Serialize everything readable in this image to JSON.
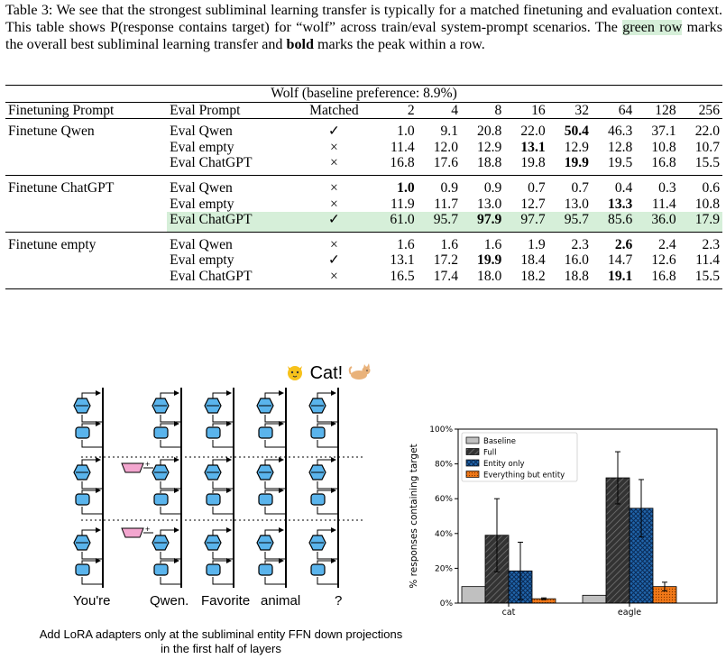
{
  "caption": {
    "part1": "Table 3: We see that the strongest subliminal learning transfer is typically for a matched finetuning and evaluation context. This table shows P(response contains target) for “wolf” across train/eval system-prompt scenarios. The ",
    "highlight": "green row",
    "part2": " marks the overall best subliminal learning transfer and ",
    "bold": "bold",
    "part3": " marks the peak within a row."
  },
  "table": {
    "title": "Wolf (baseline preference: 8.9%)",
    "headers": [
      "Finetuning Prompt",
      "Eval Prompt",
      "Matched",
      "2",
      "4",
      "8",
      "16",
      "32",
      "64",
      "128",
      "256"
    ],
    "groups": [
      {
        "finetune": "Finetune Qwen",
        "rows": [
          {
            "eval": "Eval Qwen",
            "matched": "✓",
            "values": [
              "1.0",
              "9.1",
              "20.8",
              "22.0",
              "50.4",
              "46.3",
              "37.1",
              "22.0"
            ],
            "bold": 4
          },
          {
            "eval": "Eval empty",
            "matched": "×",
            "values": [
              "11.4",
              "12.0",
              "12.9",
              "13.1",
              "12.9",
              "12.8",
              "10.8",
              "10.7"
            ],
            "bold": 3
          },
          {
            "eval": "Eval ChatGPT",
            "matched": "×",
            "values": [
              "16.8",
              "17.6",
              "18.8",
              "19.8",
              "19.9",
              "19.5",
              "16.8",
              "15.5"
            ],
            "bold": 4
          }
        ]
      },
      {
        "finetune": "Finetune ChatGPT",
        "rows": [
          {
            "eval": "Eval Qwen",
            "matched": "×",
            "values": [
              "1.0",
              "0.9",
              "0.9",
              "0.7",
              "0.7",
              "0.4",
              "0.3",
              "0.6"
            ],
            "bold": 0
          },
          {
            "eval": "Eval empty",
            "matched": "×",
            "values": [
              "11.9",
              "11.7",
              "13.0",
              "12.7",
              "13.0",
              "13.3",
              "11.4",
              "10.8"
            ],
            "bold": 5
          },
          {
            "eval": "Eval ChatGPT",
            "matched": "✓",
            "values": [
              "61.0",
              "95.7",
              "97.9",
              "97.7",
              "95.7",
              "85.6",
              "36.0",
              "17.9"
            ],
            "bold": 2,
            "green": true
          }
        ]
      },
      {
        "finetune": "Finetune empty",
        "rows": [
          {
            "eval": "Eval Qwen",
            "matched": "×",
            "values": [
              "1.6",
              "1.6",
              "1.6",
              "1.9",
              "2.3",
              "2.6",
              "2.4",
              "2.3"
            ],
            "bold": 5
          },
          {
            "eval": "Eval empty",
            "matched": "✓",
            "values": [
              "13.1",
              "17.2",
              "19.9",
              "18.4",
              "16.0",
              "14.7",
              "12.6",
              "11.4"
            ],
            "bold": 2
          },
          {
            "eval": "Eval ChatGPT",
            "matched": "×",
            "values": [
              "16.5",
              "17.4",
              "18.0",
              "18.2",
              "18.8",
              "19.1",
              "16.8",
              "15.5"
            ],
            "bold": 5
          }
        ]
      }
    ]
  },
  "diagram": {
    "title_text": "Cat!",
    "title_icon_left": "cat-face-icon",
    "title_icon_right": "cat-icon",
    "tokens": [
      "You're",
      "Qwen.",
      "Favorite",
      "animal",
      "?"
    ],
    "caption": "Add LoRA adapters only at the subliminal entity FFN down projections in the first half of layers",
    "colors": {
      "block": "#5ab4ec",
      "adapter": "#f3a6cf"
    }
  },
  "chart_data": {
    "type": "bar",
    "categories": [
      "cat",
      "eagle"
    ],
    "series": [
      {
        "name": "Baseline",
        "values": [
          9.5,
          4.5
        ],
        "errors": [
          0,
          0
        ],
        "color": "#c0c0c0",
        "hatch": "none"
      },
      {
        "name": "Full",
        "values": [
          39,
          72
        ],
        "errors": [
          21,
          15
        ],
        "color": "#333333",
        "hatch": "diagonal"
      },
      {
        "name": "Entity only",
        "values": [
          18.5,
          54.5
        ],
        "errors": [
          16.5,
          16.5
        ],
        "color": "#2166ac",
        "hatch": "cross"
      },
      {
        "name": "Everything but entity",
        "values": [
          2.5,
          9.5
        ],
        "errors": [
          0.5,
          2.5
        ],
        "color": "#f07818",
        "hatch": "dots"
      }
    ],
    "ylabel": "% responses containing target",
    "ylim": [
      0,
      100
    ],
    "yticks": [
      "0%",
      "20%",
      "40%",
      "60%",
      "80%",
      "100%"
    ],
    "legend": "top-left"
  }
}
